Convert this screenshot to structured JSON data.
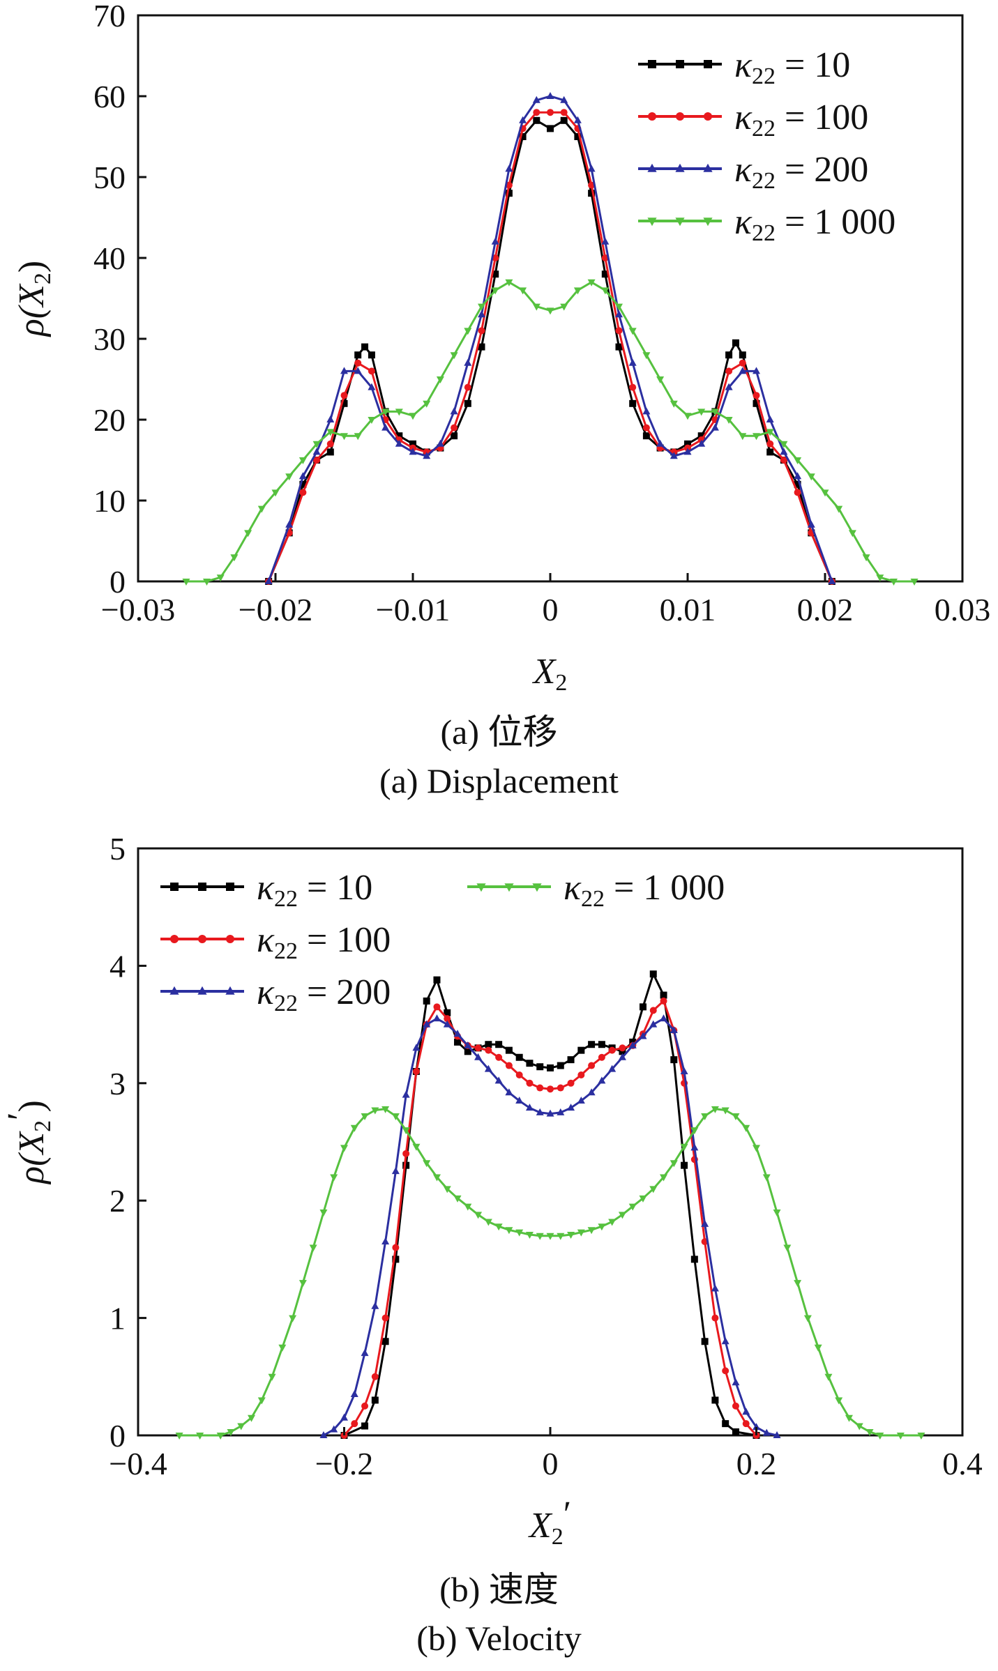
{
  "captions": {
    "a_cn": "(a)  位移",
    "a_en": "(a)  Displacement",
    "b_cn": "(b)  速度",
    "b_en": "(b)  Velocity"
  },
  "chart_data": [
    {
      "type": "line",
      "xlabel": "X2",
      "ylabel": "ρ(X2)",
      "xlim": [
        -0.03,
        0.03
      ],
      "ylim": [
        0,
        70
      ],
      "xticks": [
        -0.03,
        -0.02,
        -0.01,
        0,
        0.01,
        0.02,
        0.03
      ],
      "xtick_labels": [
        "−0.03",
        "−0.02",
        "−0.01",
        "0",
        "0.01",
        "0.02",
        "0.03"
      ],
      "yticks": [
        0,
        10,
        20,
        30,
        40,
        50,
        60,
        70
      ],
      "ytick_labels": [
        "0",
        "10",
        "20",
        "30",
        "40",
        "50",
        "60",
        "70"
      ],
      "legend_position": "top-right",
      "grid": false,
      "series": [
        {
          "name": "κ22 = 10",
          "color": "#000000",
          "marker": "square",
          "x": [
            -0.0205,
            -0.019,
            -0.018,
            -0.017,
            -0.016,
            -0.015,
            -0.014,
            -0.0135,
            -0.013,
            -0.012,
            -0.011,
            -0.01,
            -0.009,
            -0.008,
            -0.007,
            -0.006,
            -0.005,
            -0.004,
            -0.003,
            -0.002,
            -0.001,
            0,
            0.001,
            0.002,
            0.003,
            0.004,
            0.005,
            0.006,
            0.007,
            0.008,
            0.009,
            0.01,
            0.011,
            0.012,
            0.013,
            0.0135,
            0.014,
            0.015,
            0.016,
            0.017,
            0.018,
            0.019,
            0.0205
          ],
          "y": [
            0,
            6,
            12,
            15,
            16,
            22,
            28,
            29,
            28,
            21,
            18,
            17,
            16,
            16.5,
            18,
            22,
            29,
            38,
            48,
            55,
            57,
            56,
            57,
            55,
            48,
            38,
            29,
            22,
            18,
            16.5,
            16,
            17,
            18,
            21,
            28,
            29.5,
            28,
            22,
            16,
            15,
            12,
            6,
            0
          ]
        },
        {
          "name": "κ22 = 100",
          "color": "#e8191e",
          "marker": "circle",
          "x": [
            -0.0205,
            -0.019,
            -0.018,
            -0.017,
            -0.016,
            -0.015,
            -0.014,
            -0.013,
            -0.012,
            -0.011,
            -0.01,
            -0.009,
            -0.008,
            -0.007,
            -0.006,
            -0.005,
            -0.004,
            -0.003,
            -0.002,
            -0.001,
            0,
            0.001,
            0.002,
            0.003,
            0.004,
            0.005,
            0.006,
            0.007,
            0.008,
            0.009,
            0.01,
            0.011,
            0.012,
            0.013,
            0.014,
            0.015,
            0.016,
            0.017,
            0.018,
            0.019,
            0.0205
          ],
          "y": [
            0,
            6,
            11,
            15,
            17,
            23,
            27,
            26,
            20,
            17.5,
            16.5,
            16,
            16.5,
            19,
            24,
            31,
            40,
            49,
            56,
            58,
            58,
            58,
            56,
            49,
            40,
            31,
            24,
            19,
            16.5,
            16,
            16.5,
            17.5,
            20,
            26,
            27,
            23,
            17,
            15,
            11,
            6,
            0
          ]
        },
        {
          "name": "κ22 = 200",
          "color": "#2b2fa0",
          "marker": "triangle-up",
          "x": [
            -0.0205,
            -0.019,
            -0.018,
            -0.017,
            -0.016,
            -0.015,
            -0.014,
            -0.013,
            -0.012,
            -0.011,
            -0.01,
            -0.009,
            -0.008,
            -0.007,
            -0.006,
            -0.005,
            -0.004,
            -0.003,
            -0.002,
            -0.001,
            0,
            0.001,
            0.002,
            0.003,
            0.004,
            0.005,
            0.006,
            0.007,
            0.008,
            0.009,
            0.01,
            0.011,
            0.012,
            0.013,
            0.014,
            0.015,
            0.016,
            0.017,
            0.018,
            0.019,
            0.0205
          ],
          "y": [
            0,
            7,
            13,
            16,
            20,
            26,
            26,
            24,
            19,
            17,
            16,
            15.5,
            17,
            21,
            27,
            33,
            42,
            51,
            57,
            59.5,
            60,
            59.5,
            57,
            51,
            42,
            33,
            27,
            21,
            17,
            15.5,
            16,
            17,
            19,
            24,
            26,
            26,
            20,
            16,
            13,
            7,
            0
          ]
        },
        {
          "name": "κ22 = 1 000",
          "color": "#56c13f",
          "marker": "triangle-down",
          "x": [
            -0.0265,
            -0.025,
            -0.024,
            -0.023,
            -0.022,
            -0.021,
            -0.02,
            -0.019,
            -0.018,
            -0.017,
            -0.016,
            -0.015,
            -0.014,
            -0.013,
            -0.012,
            -0.011,
            -0.01,
            -0.009,
            -0.008,
            -0.007,
            -0.006,
            -0.005,
            -0.004,
            -0.003,
            -0.002,
            -0.001,
            0,
            0.001,
            0.002,
            0.003,
            0.004,
            0.005,
            0.006,
            0.007,
            0.008,
            0.009,
            0.01,
            0.011,
            0.012,
            0.013,
            0.014,
            0.015,
            0.016,
            0.017,
            0.018,
            0.019,
            0.02,
            0.021,
            0.022,
            0.023,
            0.024,
            0.025,
            0.0265
          ],
          "y": [
            0,
            0,
            0.5,
            3,
            6,
            9,
            11,
            13,
            15,
            17,
            18.5,
            18,
            18,
            20,
            21,
            21,
            20.5,
            22,
            25,
            28,
            31,
            34,
            36,
            37,
            36,
            34,
            33.5,
            34,
            36,
            37,
            36,
            34,
            31,
            28,
            25,
            22,
            20.5,
            21,
            21,
            20,
            18,
            18,
            18.5,
            17,
            15,
            13,
            11,
            9,
            6,
            3,
            0.5,
            0,
            0
          ]
        }
      ]
    },
    {
      "type": "line",
      "xlabel": "X2′",
      "ylabel": "ρ(X2′)",
      "xlim": [
        -0.4,
        0.4
      ],
      "ylim": [
        0,
        5
      ],
      "xticks": [
        -0.4,
        -0.2,
        0,
        0.2,
        0.4
      ],
      "xtick_labels": [
        "−0.4",
        "−0.2",
        "0",
        "0.2",
        "0.4"
      ],
      "yticks": [
        0,
        1,
        2,
        3,
        4,
        5
      ],
      "ytick_labels": [
        "0",
        "1",
        "2",
        "3",
        "4",
        "5"
      ],
      "legend_position": "top-left",
      "grid": false,
      "series": [
        {
          "name": "κ22 = 10",
          "color": "#000000",
          "marker": "square",
          "x": [
            -0.2,
            -0.18,
            -0.17,
            -0.16,
            -0.15,
            -0.14,
            -0.13,
            -0.12,
            -0.11,
            -0.1,
            -0.09,
            -0.08,
            -0.07,
            -0.06,
            -0.05,
            -0.04,
            -0.03,
            -0.02,
            -0.01,
            0,
            0.01,
            0.02,
            0.03,
            0.04,
            0.05,
            0.06,
            0.07,
            0.08,
            0.09,
            0.1,
            0.11,
            0.12,
            0.13,
            0.14,
            0.15,
            0.16,
            0.17,
            0.18,
            0.2
          ],
          "y": [
            0,
            0.08,
            0.3,
            0.8,
            1.5,
            2.3,
            3.1,
            3.7,
            3.88,
            3.6,
            3.35,
            3.27,
            3.3,
            3.33,
            3.33,
            3.28,
            3.22,
            3.17,
            3.14,
            3.13,
            3.15,
            3.2,
            3.28,
            3.33,
            3.33,
            3.3,
            3.27,
            3.35,
            3.65,
            3.93,
            3.75,
            3.2,
            2.3,
            1.5,
            0.8,
            0.3,
            0.1,
            0.03,
            0
          ]
        },
        {
          "name": "κ22 = 100",
          "color": "#e8191e",
          "marker": "circle",
          "x": [
            -0.2,
            -0.19,
            -0.18,
            -0.17,
            -0.16,
            -0.15,
            -0.14,
            -0.13,
            -0.12,
            -0.11,
            -0.1,
            -0.09,
            -0.08,
            -0.07,
            -0.06,
            -0.05,
            -0.04,
            -0.03,
            -0.02,
            -0.01,
            0,
            0.01,
            0.02,
            0.03,
            0.04,
            0.05,
            0.06,
            0.07,
            0.08,
            0.09,
            0.1,
            0.11,
            0.12,
            0.13,
            0.14,
            0.15,
            0.16,
            0.17,
            0.18,
            0.19,
            0.2
          ],
          "y": [
            0,
            0.1,
            0.25,
            0.5,
            1,
            1.6,
            2.4,
            3.1,
            3.5,
            3.65,
            3.55,
            3.4,
            3.32,
            3.3,
            3.28,
            3.22,
            3.15,
            3.07,
            3,
            2.96,
            2.95,
            2.96,
            3,
            3.07,
            3.15,
            3.22,
            3.28,
            3.3,
            3.32,
            3.42,
            3.62,
            3.7,
            3.45,
            3,
            2.35,
            1.65,
            1,
            0.55,
            0.25,
            0.1,
            0
          ]
        },
        {
          "name": "κ22 = 200",
          "color": "#2b2fa0",
          "marker": "triangle-up",
          "x": [
            -0.22,
            -0.21,
            -0.2,
            -0.19,
            -0.18,
            -0.17,
            -0.16,
            -0.15,
            -0.14,
            -0.13,
            -0.12,
            -0.11,
            -0.1,
            -0.09,
            -0.08,
            -0.07,
            -0.06,
            -0.05,
            -0.04,
            -0.03,
            -0.02,
            -0.01,
            0,
            0.01,
            0.02,
            0.03,
            0.04,
            0.05,
            0.06,
            0.07,
            0.08,
            0.09,
            0.1,
            0.11,
            0.12,
            0.13,
            0.14,
            0.15,
            0.16,
            0.17,
            0.18,
            0.19,
            0.2,
            0.21,
            0.22
          ],
          "y": [
            0,
            0.05,
            0.15,
            0.35,
            0.7,
            1.1,
            1.65,
            2.25,
            2.9,
            3.3,
            3.5,
            3.55,
            3.5,
            3.42,
            3.32,
            3.22,
            3.12,
            3.02,
            2.92,
            2.85,
            2.79,
            2.75,
            2.74,
            2.75,
            2.79,
            2.85,
            2.92,
            3.02,
            3.12,
            3.22,
            3.32,
            3.4,
            3.5,
            3.55,
            3.45,
            3.1,
            2.45,
            1.8,
            1.25,
            0.8,
            0.45,
            0.2,
            0.07,
            0.02,
            0
          ]
        },
        {
          "name": "κ22 = 1 000",
          "color": "#56c13f",
          "marker": "triangle-down",
          "x": [
            -0.36,
            -0.34,
            -0.32,
            -0.31,
            -0.3,
            -0.29,
            -0.28,
            -0.27,
            -0.26,
            -0.25,
            -0.24,
            -0.23,
            -0.22,
            -0.21,
            -0.2,
            -0.19,
            -0.18,
            -0.17,
            -0.16,
            -0.15,
            -0.14,
            -0.13,
            -0.12,
            -0.11,
            -0.1,
            -0.09,
            -0.08,
            -0.07,
            -0.06,
            -0.05,
            -0.04,
            -0.03,
            -0.02,
            -0.01,
            0,
            0.01,
            0.02,
            0.03,
            0.04,
            0.05,
            0.06,
            0.07,
            0.08,
            0.09,
            0.1,
            0.11,
            0.12,
            0.13,
            0.14,
            0.15,
            0.16,
            0.17,
            0.18,
            0.19,
            0.2,
            0.21,
            0.22,
            0.23,
            0.24,
            0.25,
            0.26,
            0.27,
            0.28,
            0.29,
            0.3,
            0.31,
            0.32,
            0.34,
            0.36
          ],
          "y": [
            0,
            0,
            0,
            0.03,
            0.08,
            0.15,
            0.3,
            0.5,
            0.75,
            1,
            1.3,
            1.6,
            1.9,
            2.2,
            2.45,
            2.62,
            2.72,
            2.77,
            2.78,
            2.72,
            2.6,
            2.46,
            2.32,
            2.2,
            2.1,
            2.02,
            1.95,
            1.88,
            1.82,
            1.78,
            1.75,
            1.73,
            1.71,
            1.7,
            1.7,
            1.7,
            1.71,
            1.73,
            1.75,
            1.78,
            1.82,
            1.88,
            1.95,
            2.02,
            2.1,
            2.2,
            2.32,
            2.46,
            2.6,
            2.72,
            2.78,
            2.77,
            2.72,
            2.62,
            2.45,
            2.2,
            1.9,
            1.6,
            1.3,
            1,
            0.75,
            0.5,
            0.3,
            0.15,
            0.08,
            0.03,
            0,
            0,
            0
          ]
        }
      ]
    }
  ]
}
